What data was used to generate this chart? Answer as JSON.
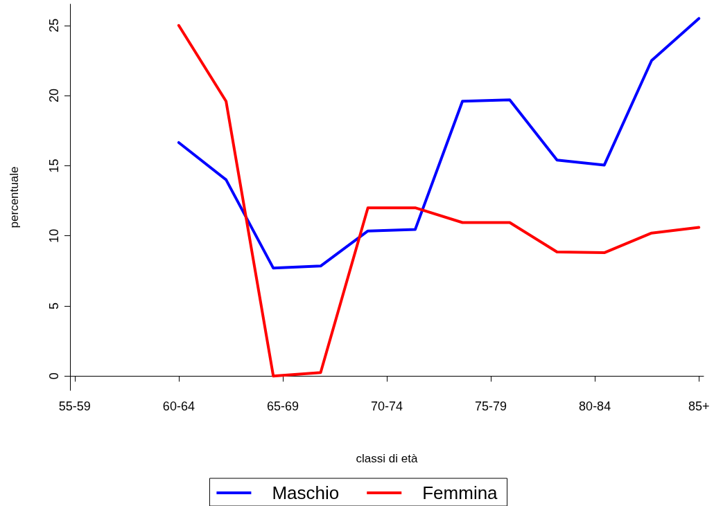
{
  "chart_data": {
    "type": "line",
    "xlabel": "classi di età",
    "ylabel": "percentuale",
    "categories": [
      "55-59",
      null,
      null,
      null,
      null,
      null,
      null,
      null,
      null,
      null,
      null,
      "60-64",
      null,
      null,
      null,
      null,
      null,
      null,
      null,
      null,
      null,
      null,
      "65-69",
      null,
      null,
      null,
      null,
      null,
      null,
      null,
      null,
      null,
      null,
      "70-74",
      null,
      null,
      null,
      null,
      null,
      null,
      null,
      null,
      null,
      null,
      "75-79",
      null,
      null,
      null,
      null,
      null,
      null,
      null,
      null,
      null,
      null,
      "80-84",
      null,
      null,
      null,
      null,
      null,
      null,
      null,
      null,
      null,
      null,
      "85+"
    ],
    "ylim": [
      -1.02,
      26.52
    ],
    "yticks": [
      0,
      5,
      10,
      15,
      20,
      25
    ],
    "series": [
      {
        "name": "Maschio",
        "color": "#0000ff",
        "values": [
          null,
          null,
          null,
          null,
          null,
          null,
          null,
          null,
          null,
          null,
          null,
          16.65,
          null,
          null,
          null,
          null,
          14.0,
          null,
          null,
          null,
          null,
          7.7,
          null,
          null,
          null,
          null,
          7.85,
          null,
          null,
          null,
          null,
          10.35,
          null,
          null,
          null,
          null,
          10.45,
          null,
          null,
          null,
          null,
          19.6,
          null,
          null,
          null,
          null,
          19.7,
          null,
          null,
          null,
          null,
          15.4,
          null,
          null,
          null,
          null,
          15.05,
          null,
          null,
          null,
          null,
          22.5,
          null,
          null,
          null,
          null,
          25.5
        ]
      },
      {
        "name": "Femmina",
        "color": "#ff0000",
        "values": [
          null,
          null,
          null,
          null,
          null,
          null,
          null,
          null,
          null,
          null,
          null,
          25.0,
          null,
          null,
          null,
          null,
          19.6,
          null,
          null,
          null,
          null,
          0,
          null,
          null,
          null,
          null,
          0.25,
          null,
          null,
          null,
          null,
          12.0,
          null,
          null,
          null,
          null,
          12.0,
          null,
          null,
          null,
          null,
          10.95,
          null,
          null,
          null,
          null,
          10.95,
          null,
          null,
          null,
          null,
          8.85,
          null,
          null,
          null,
          null,
          8.8,
          null,
          null,
          null,
          null,
          10.2,
          null,
          null,
          null,
          null,
          10.6
        ]
      }
    ],
    "grid": false,
    "legend": "bottom",
    "marker": "none",
    "line_style": "solid"
  }
}
